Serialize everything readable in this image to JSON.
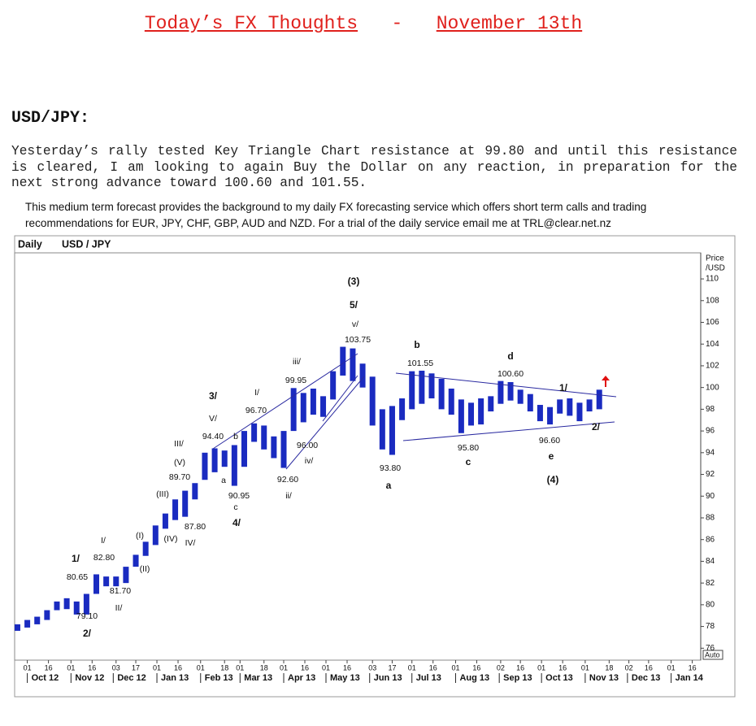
{
  "header": {
    "title_left": "Today’s FX Thoughts",
    "separator": "-",
    "title_right": "November 13th"
  },
  "section": {
    "heading": "USD/JPY:",
    "paragraph": "Yesterday’s rally tested Key Triangle Chart resistance at 99.80 and until this resistance is cleared, I am looking to again Buy the Dollar on any reaction, in preparation for the next strong advance toward 100.60 and 101.55.",
    "note": "This medium term forecast provides the background to my daily FX forecasting service which offers short term calls and trading recommendations for EUR, JPY, CHF, GBP, AUD and NZD. For a trial of the daily service email me at TRL@clear.net.nz"
  },
  "chart_data": {
    "type": "range-bar",
    "title": "Daily",
    "subtitle": "USD / JPY",
    "y_label_top": "Price",
    "y_label_bottom": "/USD",
    "scale_mode": "Auto",
    "color": "#1a2bc0",
    "x": [
      "2012-09-24",
      "2012-10-01",
      "2012-10-08",
      "2012-10-15",
      "2012-10-22",
      "2012-10-29",
      "2012-11-05",
      "2012-11-12",
      "2012-11-19",
      "2012-11-26",
      "2012-12-03",
      "2012-12-10",
      "2012-12-17",
      "2012-12-24",
      "2012-12-31",
      "2013-01-07",
      "2013-01-14",
      "2013-01-21",
      "2013-01-28",
      "2013-02-04",
      "2013-02-11",
      "2013-02-18",
      "2013-02-25",
      "2013-03-04",
      "2013-03-11",
      "2013-03-18",
      "2013-03-25",
      "2013-04-01",
      "2013-04-08",
      "2013-04-15",
      "2013-04-22",
      "2013-04-29",
      "2013-05-06",
      "2013-05-13",
      "2013-05-20",
      "2013-05-27",
      "2013-06-03",
      "2013-06-10",
      "2013-06-17",
      "2013-06-24",
      "2013-07-01",
      "2013-07-08",
      "2013-07-15",
      "2013-07-22",
      "2013-07-29",
      "2013-08-05",
      "2013-08-12",
      "2013-08-19",
      "2013-08-26",
      "2013-09-02",
      "2013-09-09",
      "2013-09-16",
      "2013-09-23",
      "2013-09-30",
      "2013-10-07",
      "2013-10-14",
      "2013-10-21",
      "2013-10-28",
      "2013-11-04",
      "2013-11-11"
    ],
    "high": [
      78.2,
      78.6,
      78.9,
      79.5,
      80.3,
      80.6,
      80.3,
      81.0,
      82.8,
      82.6,
      82.6,
      83.5,
      84.6,
      85.8,
      87.3,
      88.4,
      89.7,
      90.5,
      91.2,
      94.0,
      94.4,
      94.2,
      94.7,
      96.0,
      96.7,
      96.5,
      95.5,
      96.0,
      99.95,
      99.5,
      99.9,
      99.2,
      101.5,
      103.75,
      103.6,
      102.2,
      101.0,
      98.0,
      98.3,
      99.0,
      101.5,
      101.55,
      101.3,
      100.8,
      99.9,
      98.9,
      98.6,
      99.0,
      99.2,
      100.6,
      100.5,
      99.8,
      99.4,
      98.4,
      98.2,
      98.9,
      99.0,
      98.6,
      98.9,
      99.8
    ],
    "low": [
      77.6,
      77.9,
      78.2,
      78.6,
      79.5,
      79.6,
      79.1,
      79.1,
      81.0,
      81.7,
      81.7,
      82.0,
      83.5,
      84.5,
      85.5,
      87.0,
      87.8,
      88.1,
      89.7,
      91.5,
      92.2,
      92.7,
      90.95,
      92.7,
      95.0,
      94.3,
      93.5,
      92.6,
      96.0,
      96.8,
      97.5,
      97.3,
      98.9,
      101.1,
      100.6,
      100.0,
      96.5,
      94.3,
      93.8,
      97.0,
      98.0,
      98.5,
      99.0,
      98.0,
      97.5,
      95.8,
      96.5,
      96.6,
      97.8,
      98.5,
      98.8,
      98.5,
      97.8,
      96.9,
      96.6,
      97.6,
      97.4,
      96.9,
      97.8,
      98.0
    ],
    "xlim": [
      "2012-09-22",
      "2014-01-22"
    ],
    "xticks": [
      {
        "value": "2012-10-01",
        "label": "01"
      },
      {
        "value": "2012-10-16",
        "label": "16"
      },
      {
        "value": "2012-11-01",
        "label": "01"
      },
      {
        "value": "2012-11-16",
        "label": "16"
      },
      {
        "value": "2012-12-03",
        "label": "03"
      },
      {
        "value": "2012-12-17",
        "label": "17"
      },
      {
        "value": "2013-01-01",
        "label": "01"
      },
      {
        "value": "2013-01-16",
        "label": "16"
      },
      {
        "value": "2013-02-01",
        "label": "01"
      },
      {
        "value": "2013-02-18",
        "label": "18"
      },
      {
        "value": "2013-03-01",
        "label": "01"
      },
      {
        "value": "2013-03-18",
        "label": "18"
      },
      {
        "value": "2013-04-01",
        "label": "01"
      },
      {
        "value": "2013-04-16",
        "label": "16"
      },
      {
        "value": "2013-05-01",
        "label": "01"
      },
      {
        "value": "2013-05-16",
        "label": "16"
      },
      {
        "value": "2013-06-03",
        "label": "03"
      },
      {
        "value": "2013-06-17",
        "label": "17"
      },
      {
        "value": "2013-07-01",
        "label": "01"
      },
      {
        "value": "2013-07-16",
        "label": "16"
      },
      {
        "value": "2013-08-01",
        "label": "01"
      },
      {
        "value": "2013-08-16",
        "label": "16"
      },
      {
        "value": "2013-09-02",
        "label": "02"
      },
      {
        "value": "2013-09-16",
        "label": "16"
      },
      {
        "value": "2013-10-01",
        "label": "01"
      },
      {
        "value": "2013-10-16",
        "label": "16"
      },
      {
        "value": "2013-11-01",
        "label": "01"
      },
      {
        "value": "2013-11-18",
        "label": "18"
      },
      {
        "value": "2013-12-02",
        "label": "02"
      },
      {
        "value": "2013-12-16",
        "label": "16"
      },
      {
        "value": "2014-01-01",
        "label": "01"
      },
      {
        "value": "2014-01-16",
        "label": "16"
      }
    ],
    "month_labels": [
      {
        "value": "2012-10-01",
        "label": "Oct 12"
      },
      {
        "value": "2012-11-01",
        "label": "Nov 12"
      },
      {
        "value": "2012-12-01",
        "label": "Dec 12"
      },
      {
        "value": "2013-01-01",
        "label": "Jan 13"
      },
      {
        "value": "2013-02-01",
        "label": "Feb 13"
      },
      {
        "value": "2013-03-01",
        "label": "Mar 13"
      },
      {
        "value": "2013-04-01",
        "label": "Apr 13"
      },
      {
        "value": "2013-05-01",
        "label": "May 13"
      },
      {
        "value": "2013-06-01",
        "label": "Jun 13"
      },
      {
        "value": "2013-07-01",
        "label": "Jul 13"
      },
      {
        "value": "2013-08-01",
        "label": "Aug 13"
      },
      {
        "value": "2013-09-01",
        "label": "Sep 13"
      },
      {
        "value": "2013-10-01",
        "label": "Oct 13"
      },
      {
        "value": "2013-11-01",
        "label": "Nov 13"
      },
      {
        "value": "2013-12-01",
        "label": "Dec 13"
      },
      {
        "value": "2014-01-01",
        "label": "Jan 14"
      }
    ],
    "ylim": [
      74.9,
      112.4
    ],
    "yticks": [
      76,
      78,
      80,
      82,
      84,
      86,
      88,
      90,
      92,
      94,
      96,
      98,
      100,
      102,
      104,
      106,
      108,
      110
    ],
    "annotations": [
      "(3)",
      "5/",
      "v/",
      "103.75",
      "b",
      "101.55",
      "d",
      "100.60",
      "iii/",
      "99.95",
      "1/",
      "3/",
      "V/",
      "I/",
      "96.70",
      "94.40",
      "b",
      "96.00",
      "III/",
      "(V)",
      "a",
      "iv/",
      "95.80",
      "96.60",
      "c",
      "e",
      "2/",
      "89.70",
      "92.60",
      "93.80",
      "a",
      "(4)",
      "(III)",
      "90.95",
      "ii/",
      "c",
      "87.80",
      "4/",
      "(I)",
      "(IV)",
      "IV/",
      "I/",
      "1/",
      "82.80",
      "(II)",
      "80.65",
      "81.70",
      "II/",
      "79.10",
      "2/"
    ]
  }
}
